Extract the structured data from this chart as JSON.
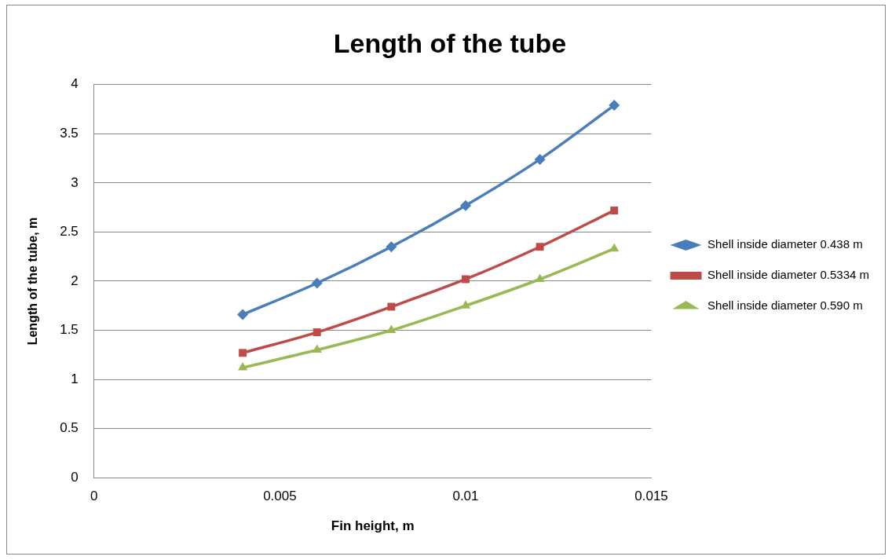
{
  "chart_data": {
    "type": "line",
    "title": "Length of the tube",
    "xlabel": "Fin height, m",
    "ylabel": "Length of the tube, m",
    "x": [
      0.004,
      0.006,
      0.008,
      0.01,
      0.012,
      0.014
    ],
    "series": [
      {
        "name": "Shell inside diameter 0.438 m",
        "color": "#4a7ebb",
        "marker": "diamond",
        "values": [
          1.66,
          1.98,
          2.35,
          2.77,
          3.24,
          3.79
        ]
      },
      {
        "name": "Shell inside diameter 0.5334 m",
        "color": "#be4b48",
        "marker": "square",
        "values": [
          1.27,
          1.48,
          1.74,
          2.02,
          2.35,
          2.72
        ]
      },
      {
        "name": "Shell inside diameter 0.590 m",
        "color": "#98b954",
        "marker": "triangle",
        "values": [
          1.12,
          1.3,
          1.5,
          1.75,
          2.02,
          2.33
        ]
      }
    ],
    "xlim": [
      0,
      0.015
    ],
    "xticks": [
      0,
      0.005,
      0.01,
      0.015
    ],
    "ylim": [
      0,
      4
    ],
    "yticks": [
      0,
      0.5,
      1,
      1.5,
      2,
      2.5,
      3,
      3.5,
      4
    ],
    "grid": "y",
    "legend": "right",
    "line_style": "solid"
  }
}
